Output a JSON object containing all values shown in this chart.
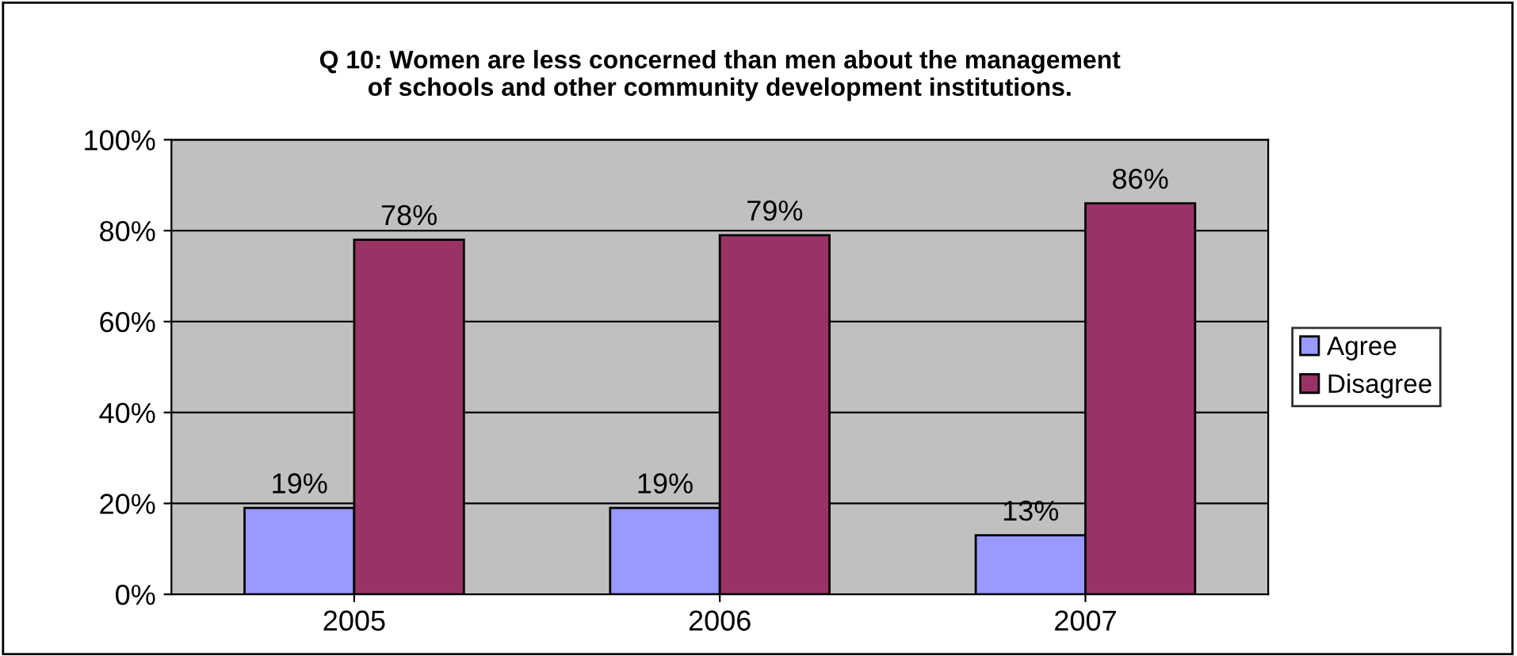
{
  "chart_data": {
    "type": "bar",
    "title": "Q 10: Women are less concerned than men about the management\nof schools and other community development institutions.",
    "categories": [
      "2005",
      "2006",
      "2007"
    ],
    "series": [
      {
        "name": "Agree",
        "color": "#9999ff",
        "values": [
          19,
          19,
          13
        ],
        "value_labels": [
          "19%",
          "19%",
          "13%"
        ]
      },
      {
        "name": "Disagree",
        "color": "#993366",
        "values": [
          78,
          79,
          86
        ],
        "value_labels": [
          "78%",
          "79%",
          "86%"
        ]
      }
    ],
    "ylim": [
      0,
      100
    ],
    "yticks": [
      {
        "value": 0,
        "label": "0%"
      },
      {
        "value": 20,
        "label": "20%"
      },
      {
        "value": 40,
        "label": "40%"
      },
      {
        "value": 60,
        "label": "60%"
      },
      {
        "value": 80,
        "label": "80%"
      },
      {
        "value": 100,
        "label": "100%"
      }
    ],
    "grid": "y",
    "legend": "right"
  }
}
